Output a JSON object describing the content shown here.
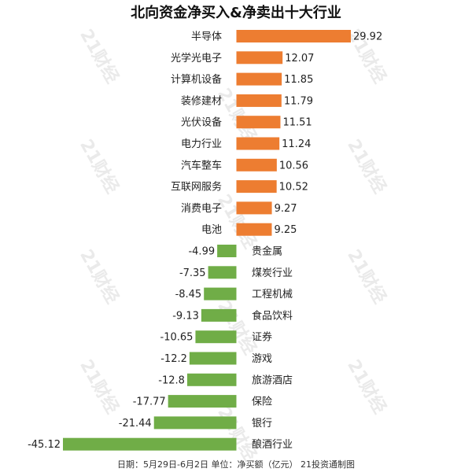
{
  "chart_data": {
    "type": "bar",
    "orientation": "horizontal",
    "title": "北向资金净买入&净卖出十大行业",
    "footer": "日期：5月29日-6月2日 单位：净买额（亿元） 21投资通制图",
    "watermark": "21财经",
    "colors": {
      "positive": "#ED7D31",
      "negative": "#70AD47"
    },
    "categories": [
      "半导体",
      "光学光电子",
      "计算机设备",
      "装修建材",
      "光伏设备",
      "电力行业",
      "汽车整车",
      "互联网服务",
      "消费电子",
      "电池",
      "贵金属",
      "煤炭行业",
      "工程机械",
      "食品饮料",
      "证券",
      "游戏",
      "旅游酒店",
      "保险",
      "银行",
      "酿酒行业"
    ],
    "values": [
      29.92,
      12.07,
      11.85,
      11.79,
      11.51,
      11.24,
      10.56,
      10.52,
      9.27,
      9.25,
      -4.99,
      -7.35,
      -8.45,
      -9.13,
      -10.65,
      -12.2,
      -12.8,
      -17.77,
      -21.44,
      -45.12
    ],
    "value_labels": [
      "29.92",
      "12.07",
      "11.85",
      "11.79",
      "11.51",
      "11.24",
      "10.56",
      "10.52",
      "9.27",
      "9.25",
      "-4.99",
      "-7.35",
      "-8.45",
      "-9.13",
      "-10.65",
      "-12.2",
      "-12.8",
      "-17.77",
      "-21.44",
      "-45.12"
    ],
    "xlim": [
      -45.12,
      29.92
    ],
    "grid": false,
    "legend": "none"
  }
}
